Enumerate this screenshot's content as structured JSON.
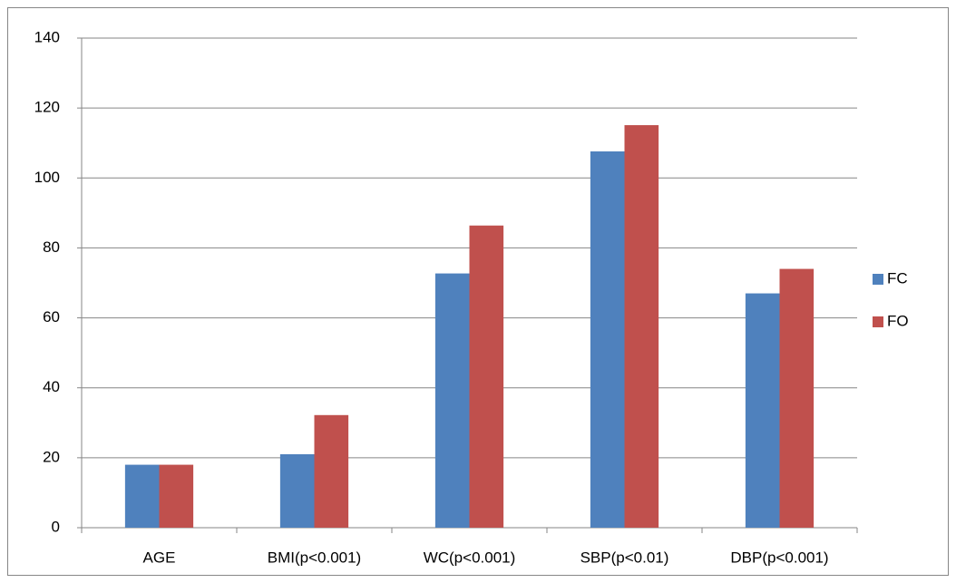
{
  "chart_data": {
    "type": "bar",
    "categories": [
      "AGE",
      "BMI(p<0.001)",
      "WC(p<0.001)",
      "SBP(p<0.01)",
      "DBP(p<0.001)"
    ],
    "series": [
      {
        "name": "FC",
        "color": "#4f81bd",
        "values": [
          18,
          21,
          72.7,
          107.6,
          67
        ]
      },
      {
        "name": "FO",
        "color": "#c0504d",
        "values": [
          18,
          32.2,
          86.4,
          115.1,
          74
        ]
      }
    ],
    "ylim": [
      0,
      140
    ],
    "yticks": [
      0,
      20,
      40,
      60,
      80,
      100,
      120,
      140
    ],
    "grid": true,
    "legend": "right"
  }
}
